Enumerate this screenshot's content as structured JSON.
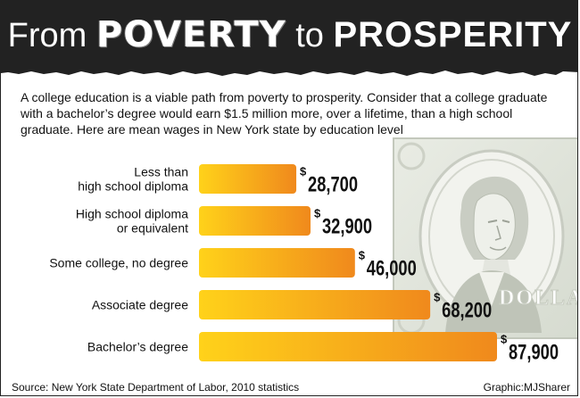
{
  "header": {
    "title_part1": "From ",
    "title_part2": "POVERTY",
    "title_part3": " to ",
    "title_part4": "PROSPERITY"
  },
  "intro": "A college education is a viable path from poverty to prosperity. Consider that a college graduate with a bachelor’s degree would earn $1.5 million more, over a lifetime, than a high school graduate. Here are mean wages in New York state by education level",
  "chart_data": {
    "type": "bar",
    "orientation": "horizontal",
    "categories": [
      [
        "Less than",
        "high school diploma"
      ],
      [
        "High school diploma",
        "or equivalent"
      ],
      [
        "Some college, no degree"
      ],
      [
        "Associate degree"
      ],
      [
        "Bachelor’s degree"
      ]
    ],
    "values": [
      28700,
      32900,
      46000,
      68200,
      87900
    ],
    "value_labels": [
      "28,700",
      "32,900",
      "46,000",
      "68,200",
      "87,900"
    ],
    "currency_symbol": "$",
    "bar_gradient": [
      "#ffd21a",
      "#f0891c"
    ]
  },
  "footer": {
    "source": "Source: New York State Department of Labor, 2010 statistics",
    "credit": "Graphic:MJSharer"
  },
  "illustration": {
    "name": "dollar-bill-washington-icon",
    "watermark_text": "DOLLAR"
  }
}
